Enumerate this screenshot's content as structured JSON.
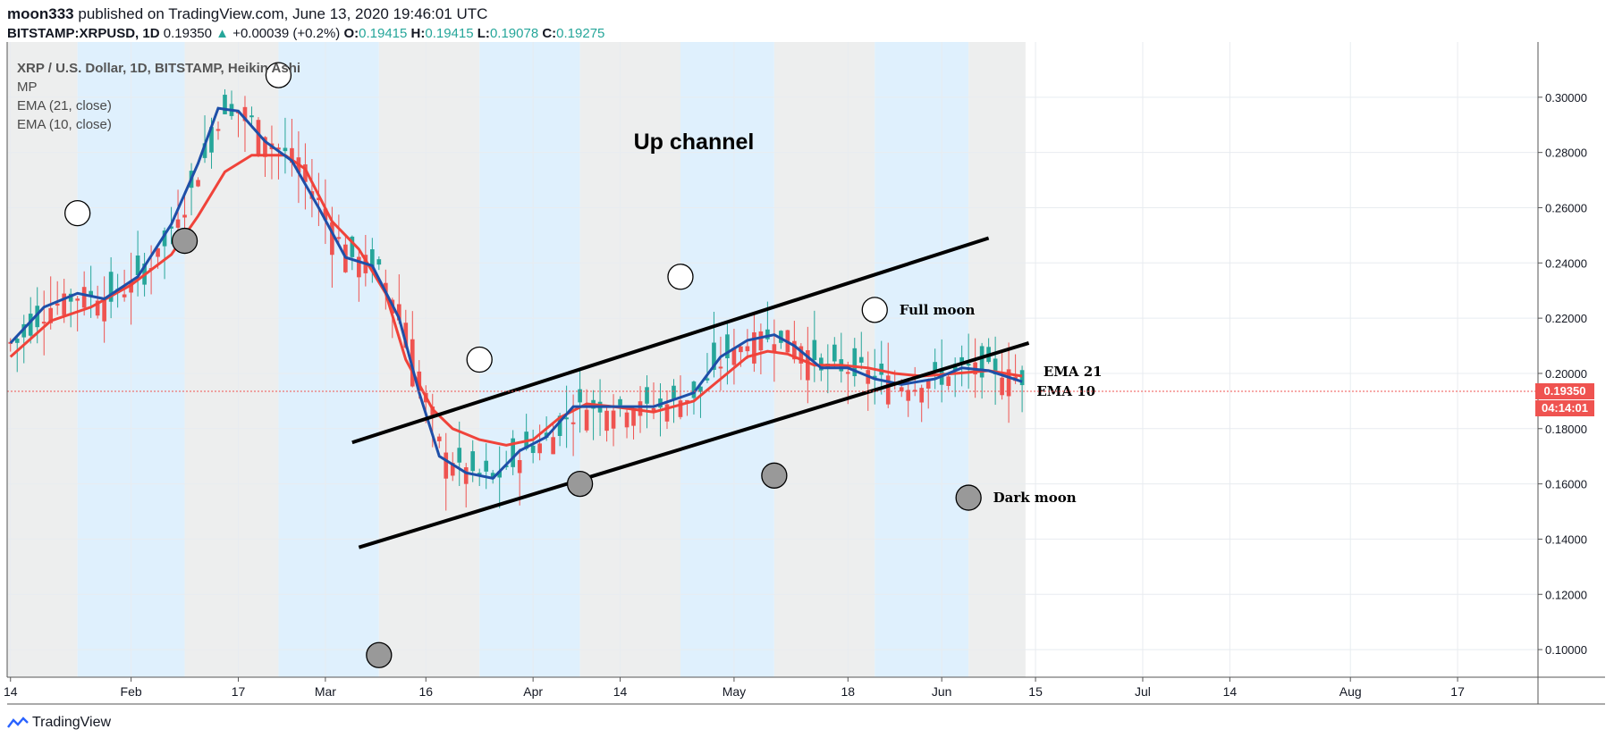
{
  "header": {
    "author": "moon333",
    "published_text": "published on TradingView.com, June 13, 2020 19:46:01 UTC",
    "symbol": "BITSTAMP:XRPUSD, 1D",
    "last": "0.19350",
    "change": "+0.00039 (+0.2%)",
    "o_label": "O:",
    "o_val": "0.19415",
    "h_label": "H:",
    "h_val": "0.19415",
    "l_label": "L:",
    "l_val": "0.19078",
    "c_label": "C:",
    "c_val": "0.19275"
  },
  "legend": {
    "line1": "XRP / U.S. Dollar, 1D, BITSTAMP, Heikin Ashi",
    "line2": "MP",
    "line3": "EMA (21, close)",
    "line4": "EMA (10, close)"
  },
  "price_labels": {
    "price": "0.19350",
    "countdown": "04:14:01"
  },
  "footer": {
    "brand": "TradingView"
  },
  "colors": {
    "up": "#26a69a",
    "down": "#ef5350",
    "ema21": "#f0433a",
    "ema10": "#1e4fa8",
    "band_grey": "#edeeee",
    "band_blue": "#dff0fd",
    "trend": "#000000"
  },
  "chart_data": {
    "type": "candlestick",
    "title": "Up channel",
    "ylim": [
      0.09,
      0.32
    ],
    "y_ticks": [
      0.1,
      0.12,
      0.14,
      0.16,
      0.18,
      0.2,
      0.22,
      0.24,
      0.26,
      0.28,
      0.3
    ],
    "y_tick_labels": [
      "0.10000",
      "0.12000",
      "0.14000",
      "0.16000",
      "0.18000",
      "0.20000",
      "0.22000",
      "0.24000",
      "0.26000",
      "0.28000",
      "0.30000"
    ],
    "x_ticks": [
      {
        "label": "14",
        "day": 14
      },
      {
        "label": "Feb",
        "day": 32
      },
      {
        "label": "17",
        "day": 48
      },
      {
        "label": "Mar",
        "day": 61
      },
      {
        "label": "16",
        "day": 76
      },
      {
        "label": "Apr",
        "day": 92
      },
      {
        "label": "14",
        "day": 105
      },
      {
        "label": "May",
        "day": 122
      },
      {
        "label": "18",
        "day": 139
      },
      {
        "label": "Jun",
        "day": 153
      },
      {
        "label": "15",
        "day": 167
      },
      {
        "label": "Jul",
        "day": 183
      },
      {
        "label": "14",
        "day": 196
      },
      {
        "label": "Aug",
        "day": 214
      },
      {
        "label": "17",
        "day": 230
      }
    ],
    "x_range_days": [
      13.5,
      242
    ],
    "last_day": 165,
    "ema21": [
      [
        14,
        0.206
      ],
      [
        20,
        0.219
      ],
      [
        26,
        0.224
      ],
      [
        32,
        0.232
      ],
      [
        38,
        0.243
      ],
      [
        42,
        0.257
      ],
      [
        46,
        0.273
      ],
      [
        50,
        0.279
      ],
      [
        55,
        0.279
      ],
      [
        58,
        0.274
      ],
      [
        62,
        0.255
      ],
      [
        66,
        0.245
      ],
      [
        70,
        0.229
      ],
      [
        73,
        0.205
      ],
      [
        77,
        0.187
      ],
      [
        80,
        0.18
      ],
      [
        84,
        0.176
      ],
      [
        88,
        0.174
      ],
      [
        92,
        0.176
      ],
      [
        96,
        0.184
      ],
      [
        100,
        0.189
      ],
      [
        104,
        0.188
      ],
      [
        110,
        0.186
      ],
      [
        116,
        0.19
      ],
      [
        120,
        0.198
      ],
      [
        124,
        0.206
      ],
      [
        127,
        0.208
      ],
      [
        130,
        0.207
      ],
      [
        134,
        0.203
      ],
      [
        138,
        0.203
      ],
      [
        142,
        0.202
      ],
      [
        146,
        0.2
      ],
      [
        150,
        0.199
      ],
      [
        155,
        0.2
      ],
      [
        160,
        0.201
      ],
      [
        165,
        0.199
      ]
    ],
    "ema10": [
      [
        14,
        0.211
      ],
      [
        19,
        0.224
      ],
      [
        24,
        0.229
      ],
      [
        28,
        0.227
      ],
      [
        33,
        0.235
      ],
      [
        38,
        0.254
      ],
      [
        42,
        0.276
      ],
      [
        45,
        0.296
      ],
      [
        48,
        0.295
      ],
      [
        52,
        0.284
      ],
      [
        56,
        0.277
      ],
      [
        60,
        0.26
      ],
      [
        64,
        0.242
      ],
      [
        68,
        0.239
      ],
      [
        72,
        0.22
      ],
      [
        75,
        0.193
      ],
      [
        78,
        0.17
      ],
      [
        82,
        0.164
      ],
      [
        86,
        0.162
      ],
      [
        90,
        0.172
      ],
      [
        94,
        0.177
      ],
      [
        98,
        0.188
      ],
      [
        104,
        0.188
      ],
      [
        110,
        0.188
      ],
      [
        116,
        0.193
      ],
      [
        120,
        0.206
      ],
      [
        124,
        0.212
      ],
      [
        128,
        0.214
      ],
      [
        131,
        0.21
      ],
      [
        135,
        0.202
      ],
      [
        139,
        0.202
      ],
      [
        143,
        0.198
      ],
      [
        147,
        0.196
      ],
      [
        152,
        0.198
      ],
      [
        156,
        0.202
      ],
      [
        160,
        0.201
      ],
      [
        165,
        0.197
      ]
    ],
    "trendlines": [
      {
        "name": "upper",
        "from": [
          65,
          0.175
        ],
        "to": [
          160,
          0.249
        ]
      },
      {
        "name": "lower",
        "from": [
          66,
          0.137
        ],
        "to": [
          166,
          0.211
        ]
      }
    ],
    "moons": [
      {
        "type": "full",
        "day": 24,
        "price": 0.258
      },
      {
        "type": "new",
        "day": 40,
        "price": 0.248
      },
      {
        "type": "full",
        "day": 54,
        "price": 0.308
      },
      {
        "type": "new",
        "day": 69,
        "price": 0.098
      },
      {
        "type": "full",
        "day": 84,
        "price": 0.205
      },
      {
        "type": "new",
        "day": 99,
        "price": 0.16
      },
      {
        "type": "full",
        "day": 114,
        "price": 0.235
      },
      {
        "type": "new",
        "day": 128,
        "price": 0.163
      },
      {
        "type": "full",
        "day": 143,
        "price": 0.223
      },
      {
        "type": "new",
        "day": 157,
        "price": 0.155
      }
    ],
    "annotations": [
      {
        "text": "Full moon",
        "day": 146,
        "price": 0.223
      },
      {
        "text": "Dark moon",
        "day": 160,
        "price": 0.155
      },
      {
        "text": "EMA 21",
        "day": 167.5,
        "price": 0.2006
      },
      {
        "text": "EMA 10",
        "day": 166.5,
        "price": 0.1935
      }
    ],
    "current_price": 0.1935
  }
}
